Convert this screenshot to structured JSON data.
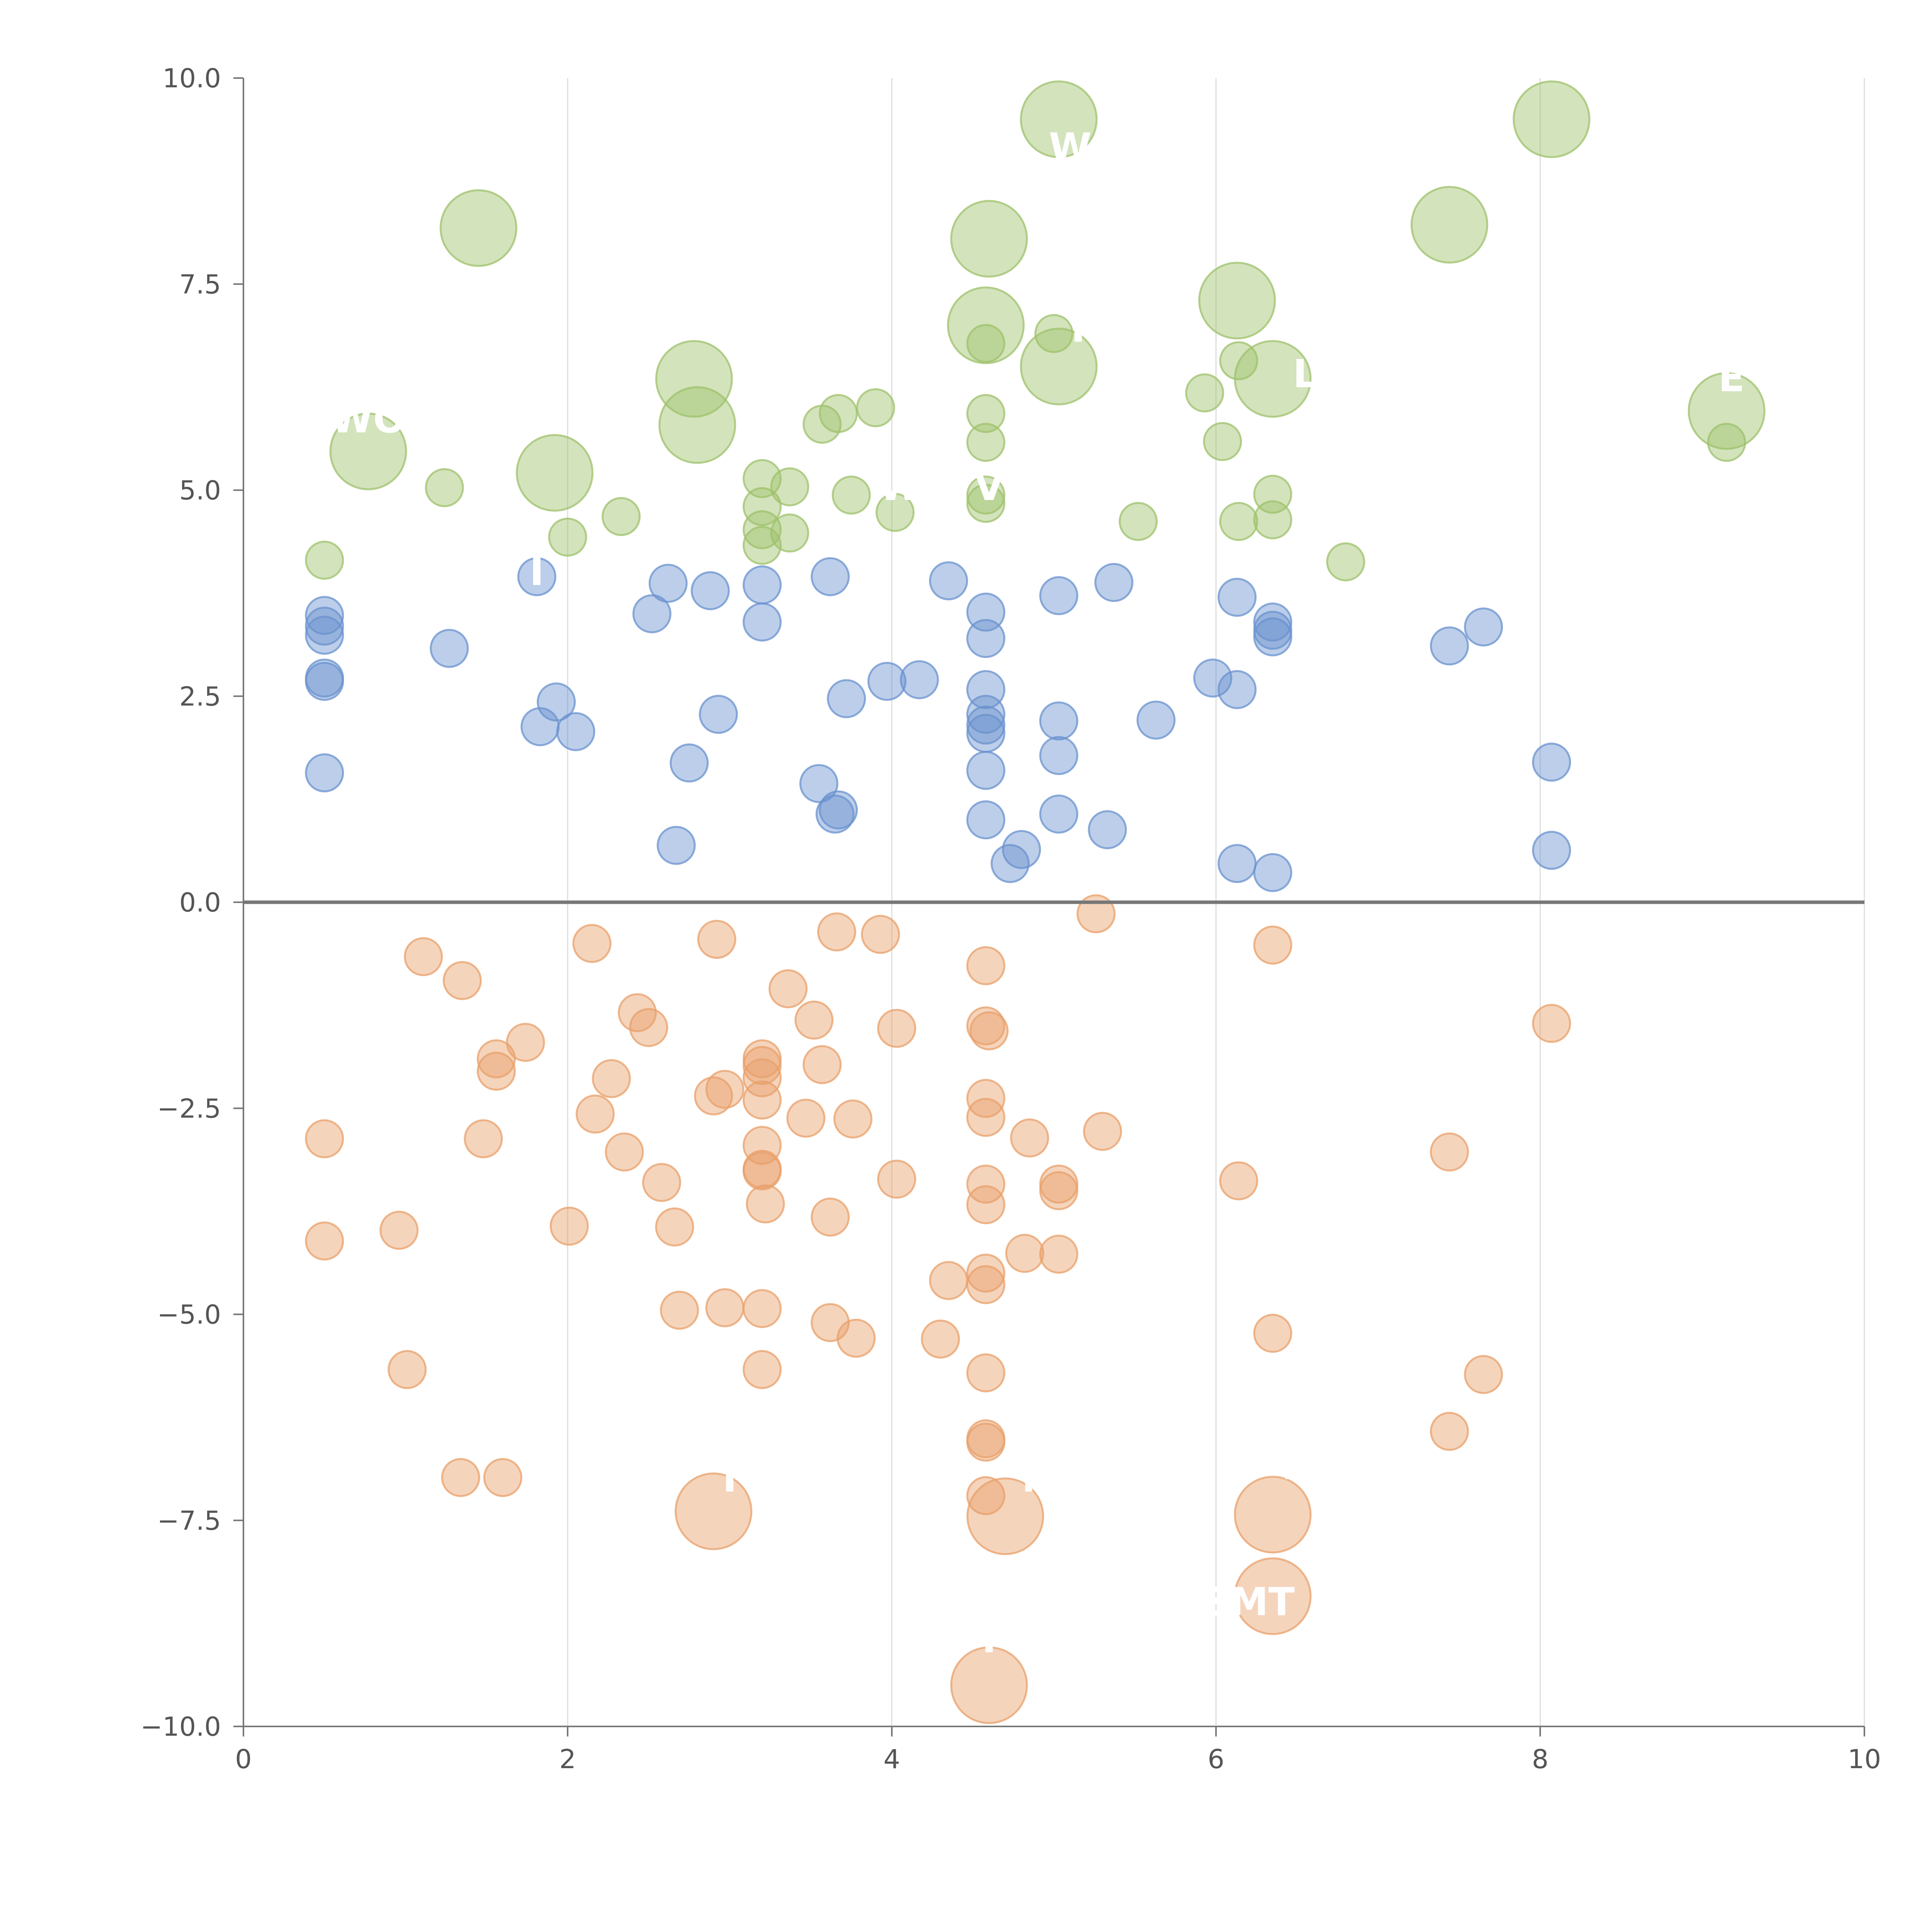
{
  "chart_data": {
    "type": "scatter",
    "title": "",
    "xlabel": "",
    "ylabel": "",
    "xlim": [
      0,
      10
    ],
    "ylim": [
      -10,
      10
    ],
    "x_ticks": [
      0,
      2,
      4,
      6,
      8,
      10
    ],
    "x_tick_labels": [
      "0",
      "2",
      "4",
      "6",
      "8",
      "10"
    ],
    "y_ticks": [
      10,
      7.5,
      5,
      2.5,
      0,
      -2.5,
      -5,
      -7.5,
      -10
    ],
    "y_tick_labels": [
      "10.0",
      "7.5",
      "5.0",
      "2.5",
      "0.0",
      "−2.5",
      "−5.0",
      "−7.5",
      "−10.0"
    ],
    "grid": "vertical",
    "zero_line": true,
    "colors": {
      "green": "#9dc16b",
      "blue": "#6a92cf",
      "orange": "#e8a06a",
      "axis": "#777777",
      "grid": "#dddddd",
      "zero_line": "#777777"
    },
    "series": [
      {
        "name": "green",
        "color": "#9dc16b",
        "points": [
          [
            0.5,
            4.15,
            "s"
          ],
          [
            1.24,
            5.03,
            "s"
          ],
          [
            2.0,
            4.43,
            "s"
          ],
          [
            2.33,
            4.68,
            "s"
          ],
          [
            3.2,
            5.14,
            "s"
          ],
          [
            3.2,
            4.8,
            "s"
          ],
          [
            3.2,
            4.52,
            "s"
          ],
          [
            3.2,
            4.33,
            "s"
          ],
          [
            3.37,
            5.04,
            "s"
          ],
          [
            3.37,
            4.48,
            "s"
          ],
          [
            3.57,
            5.8,
            "s"
          ],
          [
            3.67,
            5.93,
            "s"
          ],
          [
            3.75,
            4.94,
            "s"
          ],
          [
            3.9,
            6.0,
            "s"
          ],
          [
            4.02,
            4.73,
            "s"
          ],
          [
            4.58,
            6.78,
            "s"
          ],
          [
            4.58,
            5.93,
            "s"
          ],
          [
            4.58,
            5.58,
            "s"
          ],
          [
            4.58,
            4.94,
            "s"
          ],
          [
            4.58,
            4.84,
            "s"
          ],
          [
            5.0,
            6.9,
            "s"
          ],
          [
            5.52,
            4.62,
            "s"
          ],
          [
            5.93,
            6.18,
            "s"
          ],
          [
            6.04,
            5.59,
            "s"
          ],
          [
            6.14,
            6.57,
            "s"
          ],
          [
            6.14,
            4.62,
            "s"
          ],
          [
            6.35,
            4.95,
            "s"
          ],
          [
            6.35,
            4.64,
            "s"
          ],
          [
            6.8,
            4.13,
            "s"
          ],
          [
            9.15,
            5.58,
            "s"
          ],
          [
            1.45,
            8.18,
            "l"
          ],
          [
            0.77,
            5.47,
            "l"
          ],
          [
            1.92,
            5.21,
            "l"
          ],
          [
            2.78,
            6.35,
            "l"
          ],
          [
            2.8,
            5.79,
            "l"
          ],
          [
            4.6,
            8.05,
            "l"
          ],
          [
            4.58,
            7.0,
            "l"
          ],
          [
            5.03,
            9.5,
            "l"
          ],
          [
            5.03,
            6.5,
            "l"
          ],
          [
            6.13,
            7.3,
            "l"
          ],
          [
            6.35,
            6.35,
            "l"
          ],
          [
            7.44,
            8.22,
            "l"
          ],
          [
            8.07,
            9.5,
            "l"
          ],
          [
            9.15,
            5.96,
            "l"
          ]
        ]
      },
      {
        "name": "blue",
        "color": "#6a92cf",
        "points": [
          [
            0.5,
            3.48,
            "s"
          ],
          [
            0.5,
            3.35,
            "s"
          ],
          [
            0.5,
            3.24,
            "s"
          ],
          [
            0.5,
            2.72,
            "s"
          ],
          [
            0.5,
            2.68,
            "s"
          ],
          [
            0.5,
            1.57,
            "s"
          ],
          [
            1.27,
            3.08,
            "s"
          ],
          [
            1.81,
            3.95,
            "s"
          ],
          [
            1.83,
            2.13,
            "s"
          ],
          [
            1.93,
            2.43,
            "s"
          ],
          [
            2.05,
            2.07,
            "s"
          ],
          [
            2.52,
            3.5,
            "s"
          ],
          [
            2.62,
            3.87,
            "s"
          ],
          [
            2.67,
            0.69,
            "s"
          ],
          [
            2.75,
            1.69,
            "s"
          ],
          [
            2.88,
            3.78,
            "s"
          ],
          [
            2.93,
            2.28,
            "s"
          ],
          [
            3.2,
            3.85,
            "s"
          ],
          [
            3.2,
            3.4,
            "s"
          ],
          [
            3.55,
            1.44,
            "s"
          ],
          [
            3.62,
            3.95,
            "s"
          ],
          [
            3.65,
            1.07,
            "s"
          ],
          [
            3.67,
            1.12,
            "s"
          ],
          [
            3.72,
            2.47,
            "s"
          ],
          [
            3.97,
            2.68,
            "s"
          ],
          [
            4.17,
            2.7,
            "s"
          ],
          [
            4.35,
            3.9,
            "s"
          ],
          [
            4.58,
            3.52,
            "s"
          ],
          [
            4.58,
            3.2,
            "s"
          ],
          [
            4.58,
            2.58,
            "s"
          ],
          [
            4.58,
            2.28,
            "s"
          ],
          [
            4.58,
            2.15,
            "s"
          ],
          [
            4.58,
            2.05,
            "s"
          ],
          [
            4.58,
            1.6,
            "s"
          ],
          [
            4.58,
            1.0,
            "s"
          ],
          [
            4.73,
            0.47,
            "s"
          ],
          [
            4.8,
            0.64,
            "s"
          ],
          [
            5.03,
            3.72,
            "s"
          ],
          [
            5.03,
            2.2,
            "s"
          ],
          [
            5.03,
            1.78,
            "s"
          ],
          [
            5.03,
            1.07,
            "s"
          ],
          [
            5.33,
            0.88,
            "s"
          ],
          [
            5.37,
            3.88,
            "s"
          ],
          [
            5.63,
            2.21,
            "s"
          ],
          [
            5.98,
            2.72,
            "s"
          ],
          [
            6.13,
            3.7,
            "s"
          ],
          [
            6.13,
            2.58,
            "s"
          ],
          [
            6.13,
            0.47,
            "s"
          ],
          [
            6.35,
            3.4,
            "s"
          ],
          [
            6.35,
            3.3,
            "s"
          ],
          [
            6.35,
            3.22,
            "s"
          ],
          [
            6.35,
            0.36,
            "s"
          ],
          [
            7.44,
            3.11,
            "s"
          ],
          [
            7.65,
            3.34,
            "s"
          ],
          [
            8.07,
            1.7,
            "s"
          ],
          [
            8.07,
            0.63,
            "s"
          ]
        ]
      },
      {
        "name": "orange",
        "color": "#e8a06a",
        "points": [
          [
            0.5,
            -2.87,
            "s"
          ],
          [
            0.5,
            -4.11,
            "s"
          ],
          [
            0.96,
            -3.98,
            "s"
          ],
          [
            1.01,
            -5.67,
            "s"
          ],
          [
            1.11,
            -0.66,
            "s"
          ],
          [
            1.35,
            -0.95,
            "s"
          ],
          [
            1.34,
            -6.98,
            "s"
          ],
          [
            1.48,
            -2.87,
            "s"
          ],
          [
            1.56,
            -1.9,
            "s"
          ],
          [
            1.56,
            -2.05,
            "s"
          ],
          [
            1.6,
            -6.98,
            "s"
          ],
          [
            1.74,
            -1.7,
            "s"
          ],
          [
            2.01,
            -3.93,
            "s"
          ],
          [
            2.15,
            -0.5,
            "s"
          ],
          [
            2.17,
            -2.57,
            "s"
          ],
          [
            2.27,
            -2.14,
            "s"
          ],
          [
            2.35,
            -3.03,
            "s"
          ],
          [
            2.43,
            -1.34,
            "s"
          ],
          [
            2.5,
            -1.52,
            "s"
          ],
          [
            2.58,
            -3.4,
            "s"
          ],
          [
            2.66,
            -3.94,
            "s"
          ],
          [
            2.69,
            -4.95,
            "s"
          ],
          [
            2.92,
            -0.45,
            "s"
          ],
          [
            2.9,
            -2.35,
            "s"
          ],
          [
            2.97,
            -2.27,
            "s"
          ],
          [
            2.97,
            -4.92,
            "s"
          ],
          [
            3.2,
            -1.9,
            "s"
          ],
          [
            3.2,
            -1.98,
            "s"
          ],
          [
            3.2,
            -2.13,
            "s"
          ],
          [
            3.2,
            -2.4,
            "s"
          ],
          [
            3.2,
            -2.95,
            "s"
          ],
          [
            3.2,
            -3.24,
            "s"
          ],
          [
            3.2,
            -3.26,
            "s"
          ],
          [
            3.22,
            -3.66,
            "s"
          ],
          [
            3.2,
            -4.93,
            "s"
          ],
          [
            3.2,
            -5.67,
            "s"
          ],
          [
            3.36,
            -1.05,
            "s"
          ],
          [
            3.47,
            -2.62,
            "s"
          ],
          [
            3.52,
            -1.43,
            "s"
          ],
          [
            3.57,
            -1.97,
            "s"
          ],
          [
            3.62,
            -3.82,
            "s"
          ],
          [
            3.62,
            -5.1,
            "s"
          ],
          [
            3.66,
            -0.36,
            "s"
          ],
          [
            3.76,
            -2.63,
            "s"
          ],
          [
            3.78,
            -5.29,
            "s"
          ],
          [
            3.93,
            -0.39,
            "s"
          ],
          [
            4.03,
            -1.53,
            "s"
          ],
          [
            4.03,
            -3.36,
            "s"
          ],
          [
            4.3,
            -5.3,
            "s"
          ],
          [
            4.35,
            -4.59,
            "s"
          ],
          [
            4.58,
            -0.77,
            "s"
          ],
          [
            4.58,
            -1.5,
            "s"
          ],
          [
            4.6,
            -1.56,
            "s"
          ],
          [
            4.58,
            -2.38,
            "s"
          ],
          [
            4.58,
            -2.61,
            "s"
          ],
          [
            4.58,
            -3.42,
            "s"
          ],
          [
            4.58,
            -3.67,
            "s"
          ],
          [
            4.58,
            -4.5,
            "s"
          ],
          [
            4.58,
            -4.64,
            "s"
          ],
          [
            4.58,
            -5.71,
            "s"
          ],
          [
            4.58,
            -6.51,
            "s"
          ],
          [
            4.58,
            -6.55,
            "s"
          ],
          [
            4.58,
            -7.2,
            "s"
          ],
          [
            4.82,
            -4.26,
            "s"
          ],
          [
            4.85,
            -2.86,
            "s"
          ],
          [
            5.03,
            -3.42,
            "s"
          ],
          [
            5.03,
            -3.5,
            "s"
          ],
          [
            5.03,
            -4.27,
            "s"
          ],
          [
            5.26,
            -0.14,
            "s"
          ],
          [
            5.3,
            -2.78,
            "s"
          ],
          [
            6.14,
            -3.38,
            "s"
          ],
          [
            6.35,
            -0.52,
            "s"
          ],
          [
            6.35,
            -5.23,
            "s"
          ],
          [
            7.44,
            -3.03,
            "s"
          ],
          [
            7.44,
            -6.42,
            "s"
          ],
          [
            7.65,
            -5.73,
            "s"
          ],
          [
            8.07,
            -1.47,
            "s"
          ],
          [
            2.9,
            -7.39,
            "l"
          ],
          [
            4.7,
            -7.45,
            "l"
          ],
          [
            6.35,
            -7.43,
            "l"
          ],
          [
            6.35,
            -8.42,
            "l"
          ],
          [
            4.6,
            -9.5,
            "l"
          ]
        ]
      }
    ],
    "annotations": [
      {
        "text": "WO",
        "x": 0.77,
        "y": 5.7
      },
      {
        "text": "I",
        "x": 1.81,
        "y": 3.85
      },
      {
        "text": "W",
        "x": 5.1,
        "y": 9.0
      },
      {
        "text": "Y",
        "x": 5.15,
        "y": 6.8
      },
      {
        "text": "L",
        "x": 6.55,
        "y": 6.25
      },
      {
        "text": "E",
        "x": 9.18,
        "y": 6.2
      },
      {
        "text": "W",
        "x": 4.05,
        "y": 4.88
      },
      {
        "text": "V",
        "x": 4.6,
        "y": 4.88
      },
      {
        "text": "I",
        "x": 3.0,
        "y": -7.15
      },
      {
        "text": "M",
        "x": 4.92,
        "y": -7.15
      },
      {
        "text": "I",
        "x": 6.45,
        "y": -7.0
      },
      {
        "text": "SMT",
        "x": 6.2,
        "y": -8.65
      },
      {
        "text": "I",
        "x": 4.6,
        "y": -9.1
      }
    ]
  }
}
